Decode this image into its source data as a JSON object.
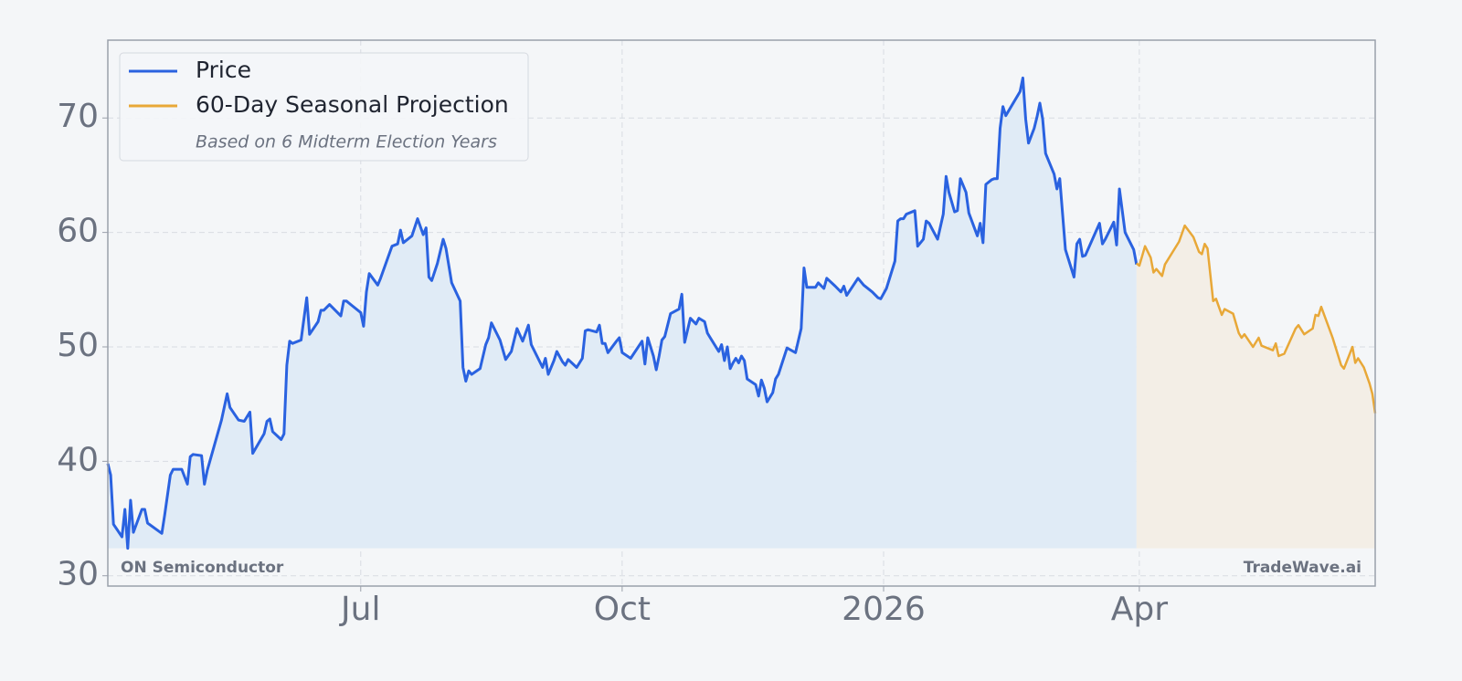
{
  "chart_data": {
    "type": "line",
    "series": [
      {
        "name": "Price",
        "color": "#2a62e0",
        "fill": "#e0ebf6",
        "x": [
          92,
          93,
          94,
          97,
          98,
          99,
          100,
          101,
          104,
          105,
          106,
          111,
          112,
          114,
          115,
          118,
          120,
          121,
          122,
          125,
          126,
          127,
          132,
          134,
          135,
          138,
          140,
          142,
          143,
          147,
          148,
          149,
          150,
          153,
          154,
          155,
          156,
          157,
          160,
          162,
          163,
          166,
          167,
          168,
          170,
          174,
          175,
          176,
          178,
          181,
          182,
          183,
          184,
          187,
          188,
          191,
          192,
          194,
          195,
          196,
          199,
          201,
          203,
          204,
          205,
          206,
          208,
          210,
          211,
          213,
          216,
          217,
          218,
          219,
          220,
          223,
          225,
          226,
          227,
          230,
          232,
          234,
          236,
          238,
          240,
          241,
          245,
          246,
          247,
          249,
          250,
          252,
          253,
          254,
          257,
          259,
          260,
          261,
          264,
          265,
          266,
          267,
          268,
          271,
          272,
          273,
          276,
          280,
          281,
          282,
          284,
          285,
          286,
          287,
          288,
          290,
          293,
          294,
          295,
          297,
          299,
          300,
          302,
          303,
          304,
          307,
          308,
          309,
          310,
          311,
          312,
          313,
          314,
          315,
          316,
          317,
          320,
          321,
          322,
          323,
          324,
          326,
          327,
          328,
          331,
          334,
          336,
          337,
          338,
          341,
          342,
          344,
          345,
          348,
          350,
          351,
          352,
          356,
          358,
          361,
          363,
          364,
          366,
          369,
          370,
          371,
          372,
          373,
          376,
          377,
          379,
          380,
          381,
          384,
          386,
          387,
          388,
          390,
          391,
          392,
          394,
          395,
          398,
          399,
          400,
          401,
          403,
          404,
          405,
          406,
          407,
          408,
          413,
          414,
          415,
          416,
          418,
          419,
          420,
          421,
          422,
          425,
          426,
          427,
          429,
          432,
          433,
          434,
          435,
          436,
          441,
          442,
          443,
          446,
          447,
          448,
          450,
          453,
          454
        ],
        "values": [
          39.8,
          38.8,
          34.5,
          33.4,
          35.8,
          32.4,
          36.6,
          33.8,
          35.8,
          35.8,
          34.6,
          33.7,
          35.3,
          38.8,
          39.3,
          39.3,
          38.0,
          40.4,
          40.6,
          40.5,
          38.0,
          39.2,
          43.6,
          45.9,
          44.7,
          43.6,
          43.5,
          44.3,
          40.7,
          42.4,
          43.5,
          43.7,
          42.6,
          41.9,
          42.4,
          48.4,
          50.5,
          50.3,
          50.6,
          54.3,
          51.1,
          52.2,
          53.2,
          53.2,
          53.7,
          52.7,
          54.0,
          54.0,
          53.6,
          53.0,
          51.8,
          54.8,
          56.4,
          55.4,
          56.0,
          58.1,
          58.8,
          59.0,
          60.2,
          59.1,
          59.7,
          61.2,
          59.8,
          60.4,
          56.1,
          55.8,
          57.3,
          59.4,
          58.6,
          55.6,
          54.0,
          48.2,
          47.0,
          47.9,
          47.6,
          48.1,
          50.2,
          50.8,
          52.1,
          50.6,
          48.9,
          49.6,
          51.6,
          50.5,
          51.9,
          50.2,
          48.2,
          49.0,
          47.6,
          48.8,
          49.6,
          48.7,
          48.4,
          48.9,
          48.2,
          49.0,
          51.4,
          51.5,
          51.3,
          51.9,
          50.3,
          50.3,
          49.5,
          50.5,
          50.8,
          49.5,
          49.0,
          50.5,
          48.5,
          50.8,
          49.2,
          48.0,
          49.2,
          50.6,
          50.9,
          52.9,
          53.3,
          54.6,
          50.4,
          52.5,
          52.0,
          52.5,
          52.2,
          51.2,
          50.8,
          49.6,
          50.2,
          48.8,
          50.0,
          48.1,
          48.6,
          49.0,
          48.6,
          49.2,
          48.8,
          47.2,
          46.7,
          45.7,
          47.1,
          46.4,
          45.2,
          46.0,
          47.2,
          47.6,
          49.9,
          49.5,
          51.6,
          56.9,
          55.2,
          55.2,
          55.6,
          55.1,
          56.0,
          55.3,
          54.8,
          55.3,
          54.5,
          56.0,
          55.4,
          54.8,
          54.3,
          54.2,
          55.1,
          57.5,
          61.0,
          61.2,
          61.2,
          61.6,
          61.9,
          58.8,
          59.4,
          61.0,
          60.8,
          59.4,
          61.6,
          64.9,
          63.5,
          61.8,
          61.9,
          64.7,
          63.5,
          61.7,
          59.7,
          60.8,
          59.1,
          64.2,
          64.6,
          64.7,
          64.7,
          69.1,
          71.0,
          70.2,
          72.3,
          73.5,
          69.9,
          67.8,
          69.1,
          70.1,
          71.3,
          69.9,
          66.9,
          65.1,
          63.8,
          64.7,
          58.5,
          56.1,
          59.0,
          59.4,
          57.9,
          58.0,
          60.8,
          59.0,
          59.4,
          60.9,
          58.9,
          63.8,
          60.0,
          58.5,
          57.2
        ]
      },
      {
        "name": "60-Day Seasonal Projection",
        "color": "#e8a838",
        "fill": "#f3eee6",
        "x": [
          454,
          455,
          457,
          459,
          460,
          461,
          463,
          464,
          469,
          471,
          474,
          476,
          477,
          478,
          479,
          481,
          482,
          484,
          485,
          488,
          490,
          491,
          492,
          495,
          497,
          498,
          502,
          503,
          504,
          506,
          510,
          511,
          513,
          516,
          517,
          518,
          519,
          523,
          524,
          526,
          527,
          530,
          531,
          532,
          534,
          536,
          537,
          538
        ],
        "values": [
          57.3,
          57.1,
          58.8,
          57.8,
          56.5,
          56.8,
          56.2,
          57.2,
          59.2,
          60.6,
          59.6,
          58.3,
          58.1,
          59.0,
          58.6,
          54.0,
          54.2,
          52.8,
          53.3,
          52.9,
          51.2,
          50.8,
          51.1,
          50.0,
          50.8,
          50.1,
          49.7,
          50.3,
          49.2,
          49.4,
          51.6,
          51.9,
          51.1,
          51.6,
          52.8,
          52.7,
          53.5,
          50.8,
          50.0,
          48.4,
          48.1,
          50.0,
          48.6,
          49.0,
          48.2,
          46.8,
          45.9,
          44.2
        ]
      }
    ],
    "legend_note": "Based on 6 Midterm Election Years",
    "legend": "upper left",
    "xlim": [
      92,
      538
    ],
    "xticks": [
      {
        "value": 181,
        "label": "Jul"
      },
      {
        "value": 273,
        "label": "Oct"
      },
      {
        "value": 365,
        "label": "2026"
      },
      {
        "value": 455,
        "label": "Apr"
      }
    ],
    "ylim": [
      29.1,
      76.8
    ],
    "yticks": [
      30,
      40,
      50,
      60,
      70
    ],
    "grid": true,
    "annotations": [
      "ON Semiconductor",
      "TradeWave.ai"
    ]
  }
}
